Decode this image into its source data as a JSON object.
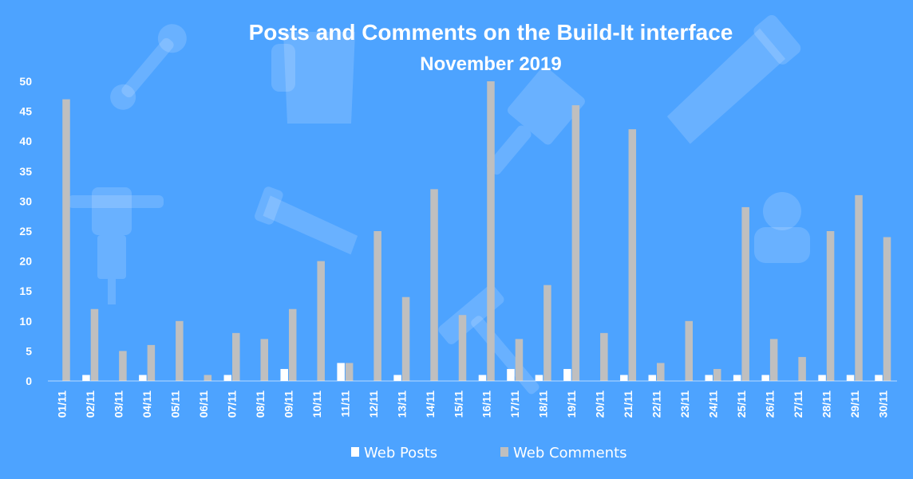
{
  "chart_data": {
    "type": "bar",
    "title": "Posts and Comments on the Build-It interface",
    "subtitle": "November 2019",
    "xlabel": "",
    "ylabel": "",
    "ylim": [
      0,
      50
    ],
    "yticks": [
      0,
      5,
      10,
      15,
      20,
      25,
      30,
      35,
      40,
      45,
      50
    ],
    "grid": false,
    "legend_position": "bottom",
    "categories": [
      "01/11",
      "02/11",
      "03/11",
      "04/11",
      "05/11",
      "06/11",
      "07/11",
      "08/11",
      "09/11",
      "10/11",
      "11/11",
      "12/11",
      "13/11",
      "14/11",
      "15/11",
      "16/11",
      "17/11",
      "18/11",
      "19/11",
      "20/11",
      "21/11",
      "22/11",
      "23/11",
      "24/11",
      "25/11",
      "26/11",
      "27/11",
      "28/11",
      "29/11",
      "30/11"
    ],
    "series": [
      {
        "name": "Web Posts",
        "color": "#ffffff",
        "values": [
          0,
          1,
          0,
          1,
          0,
          0,
          1,
          0,
          2,
          0,
          3,
          0,
          1,
          0,
          0,
          1,
          2,
          1,
          2,
          0,
          1,
          1,
          0,
          1,
          1,
          1,
          0,
          1,
          1,
          1
        ]
      },
      {
        "name": "Web Comments",
        "color": "#bfbfbf",
        "values": [
          47,
          12,
          5,
          6,
          10,
          1,
          8,
          7,
          12,
          20,
          3,
          25,
          14,
          32,
          11,
          50,
          7,
          16,
          46,
          8,
          42,
          3,
          10,
          2,
          29,
          7,
          4,
          25,
          31,
          24
        ]
      }
    ],
    "background_color": "#4da3ff",
    "decorative_icons": [
      "wrench-icon",
      "paint-bucket-icon",
      "paintbrush-icon",
      "saw-icon",
      "jackhammer-icon",
      "hand-saw-icon",
      "hammer-icon",
      "worker-icon"
    ]
  }
}
